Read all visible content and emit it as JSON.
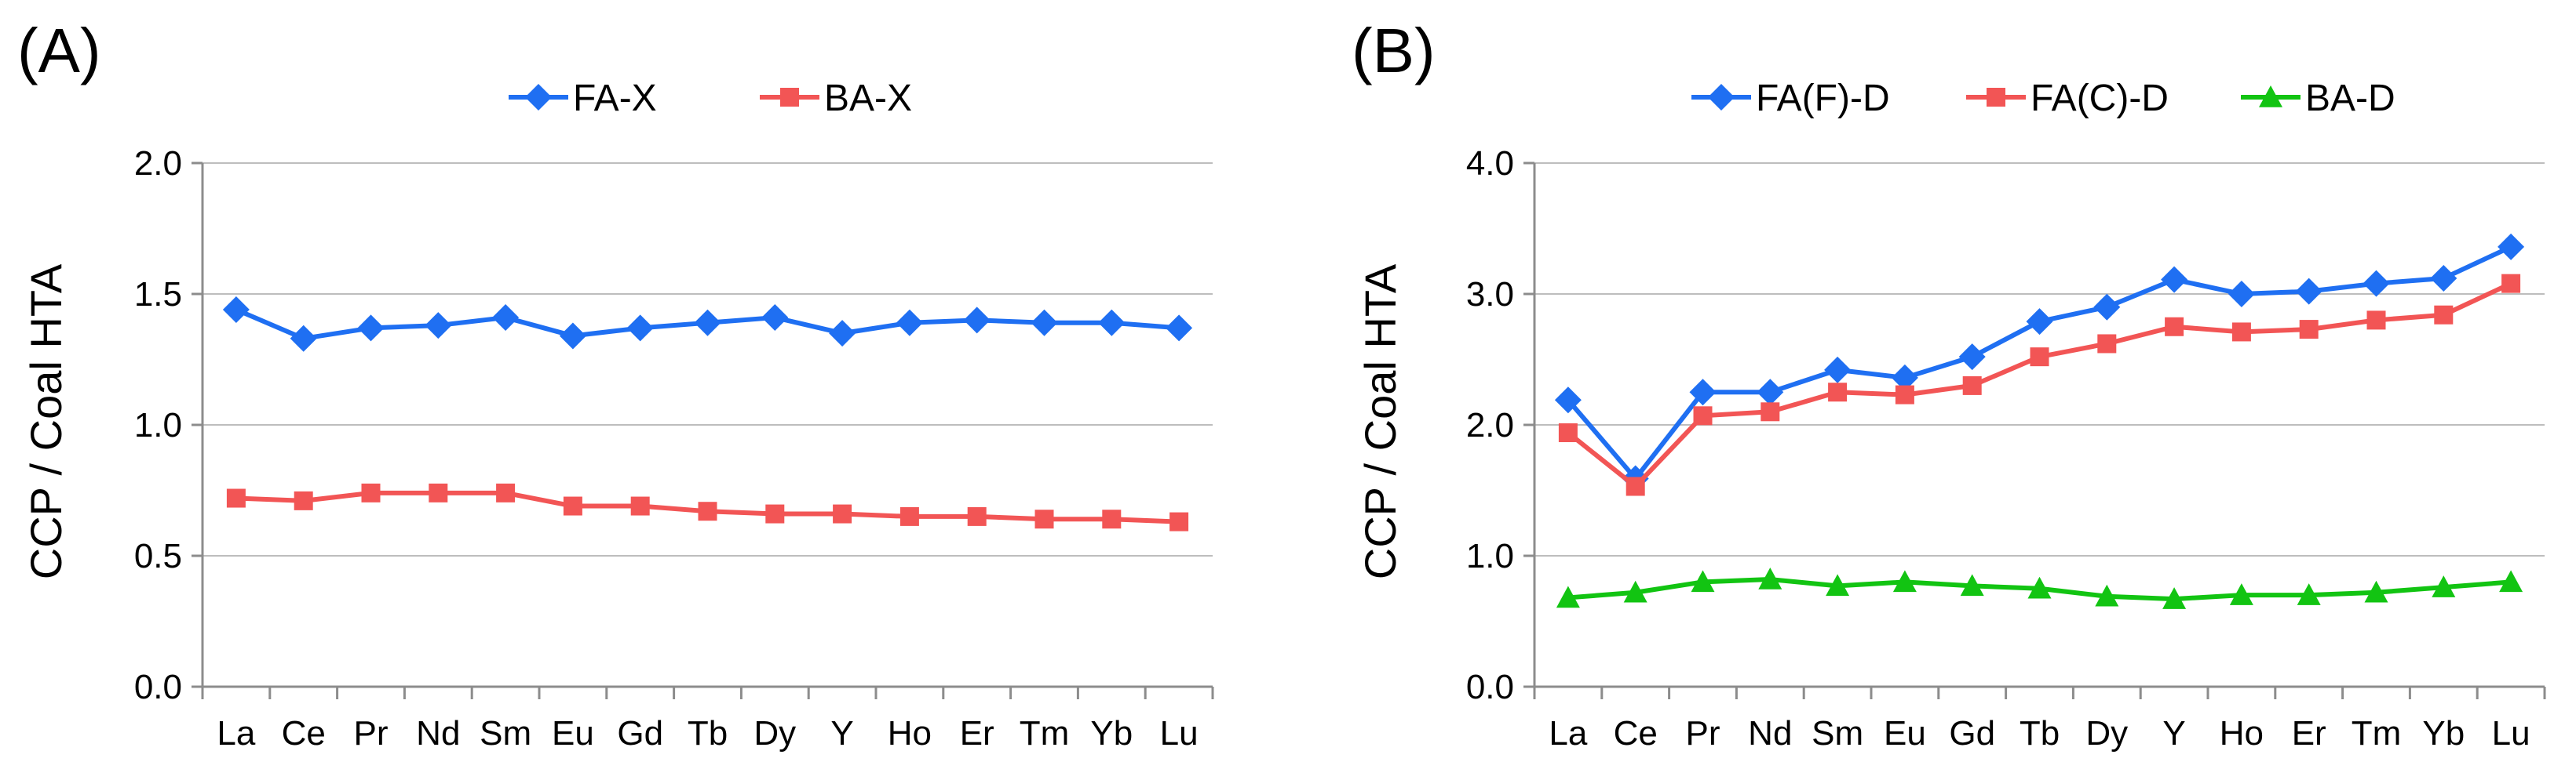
{
  "figure": {
    "colors": {
      "blue": "#1f6ff2",
      "red": "#f25555",
      "green": "#12c412",
      "grid": "#bdbdbd",
      "axis": "#8c8c8c"
    }
  },
  "chart_data": [
    {
      "type": "line",
      "panel_label": "(A)",
      "title": "",
      "xlabel": "",
      "ylabel": "CCP / Coal HTA",
      "categories": [
        "La",
        "Ce",
        "Pr",
        "Nd",
        "Sm",
        "Eu",
        "Gd",
        "Tb",
        "Dy",
        "Y",
        "Ho",
        "Er",
        "Tm",
        "Yb",
        "Lu"
      ],
      "ylim": [
        0,
        2
      ],
      "yticks": [
        "0.0",
        "0.5",
        "1.0",
        "1.5",
        "2.0"
      ],
      "ytick_values": [
        0,
        0.5,
        1,
        1.5,
        2
      ],
      "grid": true,
      "legend_position": "top-center",
      "series": [
        {
          "name": "FA-X",
          "marker": "diamond",
          "color": "#1f6ff2",
          "values": [
            1.44,
            1.33,
            1.37,
            1.38,
            1.41,
            1.34,
            1.37,
            1.39,
            1.41,
            1.35,
            1.39,
            1.4,
            1.39,
            1.39,
            1.37
          ]
        },
        {
          "name": "BA-X",
          "marker": "square",
          "color": "#f25555",
          "values": [
            0.72,
            0.71,
            0.74,
            0.74,
            0.74,
            0.69,
            0.69,
            0.67,
            0.66,
            0.66,
            0.65,
            0.65,
            0.64,
            0.64,
            0.63
          ]
        }
      ]
    },
    {
      "type": "line",
      "panel_label": "(B)",
      "title": "",
      "xlabel": "",
      "ylabel": "CCP / Coal HTA",
      "categories": [
        "La",
        "Ce",
        "Pr",
        "Nd",
        "Sm",
        "Eu",
        "Gd",
        "Tb",
        "Dy",
        "Y",
        "Ho",
        "Er",
        "Tm",
        "Yb",
        "Lu"
      ],
      "ylim": [
        0,
        4
      ],
      "yticks": [
        "0.0",
        "1.0",
        "2.0",
        "3.0",
        "4.0"
      ],
      "ytick_values": [
        0,
        1,
        2,
        3,
        4
      ],
      "grid": true,
      "legend_position": "top-center",
      "series": [
        {
          "name": "FA(F)-D",
          "marker": "diamond",
          "color": "#1f6ff2",
          "values": [
            2.19,
            1.59,
            2.25,
            2.25,
            2.42,
            2.36,
            2.52,
            2.79,
            2.9,
            3.11,
            3.0,
            3.02,
            3.08,
            3.12,
            3.36
          ]
        },
        {
          "name": "FA(C)-D",
          "marker": "square",
          "color": "#f25555",
          "values": [
            1.94,
            1.53,
            2.07,
            2.1,
            2.25,
            2.23,
            2.3,
            2.52,
            2.62,
            2.75,
            2.71,
            2.73,
            2.8,
            2.84,
            3.08
          ]
        },
        {
          "name": "BA-D",
          "marker": "triangle",
          "color": "#12c412",
          "values": [
            0.68,
            0.72,
            0.8,
            0.82,
            0.77,
            0.8,
            0.77,
            0.75,
            0.69,
            0.67,
            0.7,
            0.7,
            0.72,
            0.76,
            0.8
          ]
        }
      ]
    }
  ]
}
